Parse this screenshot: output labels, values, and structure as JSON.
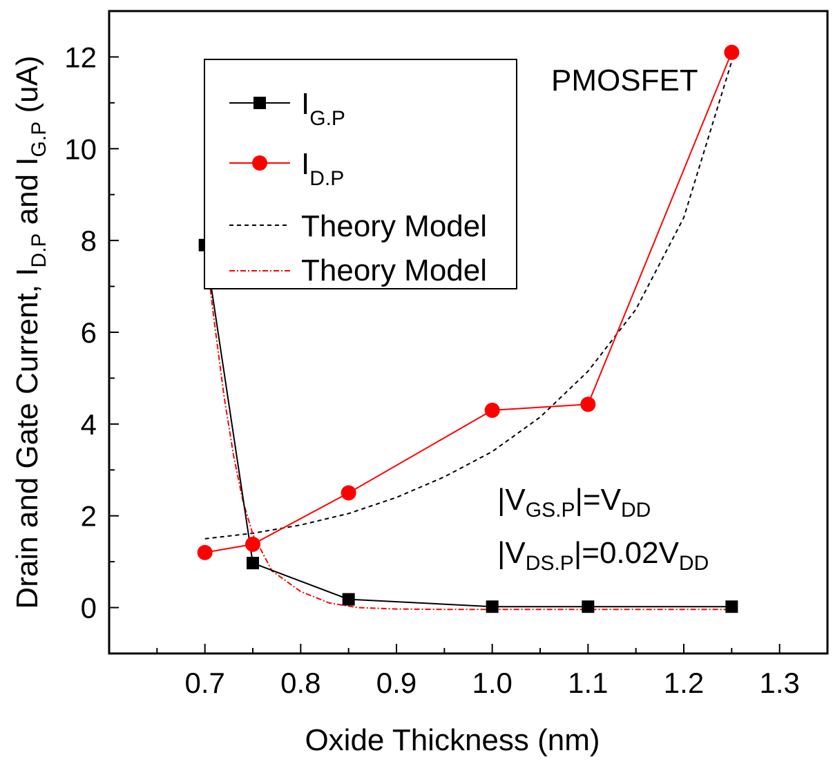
{
  "chart_data": {
    "type": "line",
    "title": "",
    "xlabel": "Oxide Thickness  (nm)",
    "ylabel": {
      "prefix": "Drain and Gate Current, I",
      "sub1": "D.P",
      "mid": " and I",
      "sub2": "G.P",
      "suffix": "  (uA)"
    },
    "xlim": [
      0.6,
      1.35
    ],
    "ylim": [
      -1,
      13
    ],
    "xticks": [
      "0.7",
      "0.8",
      "0.9",
      "1.0",
      "1.1",
      "1.2",
      "1.3"
    ],
    "xtick_values": [
      0.7,
      0.8,
      0.9,
      1.0,
      1.1,
      1.2,
      1.3
    ],
    "yticks": [
      "0",
      "2",
      "4",
      "6",
      "8",
      "10",
      "12"
    ],
    "ytick_values": [
      0,
      2,
      4,
      6,
      8,
      10,
      12
    ],
    "series": [
      {
        "name": "I",
        "sub": "G.P",
        "style": "solid-square",
        "color": "#000000",
        "x": [
          0.7,
          0.75,
          0.85,
          1.0,
          1.1,
          1.25
        ],
        "y": [
          7.9,
          0.97,
          0.18,
          0.02,
          0.02,
          0.02
        ]
      },
      {
        "name": "I",
        "sub": "D.P",
        "style": "solid-circle",
        "color": "#ff0000",
        "x": [
          0.7,
          0.75,
          0.85,
          1.0,
          1.1,
          1.25
        ],
        "y": [
          1.2,
          1.38,
          2.5,
          4.3,
          4.43,
          12.1
        ]
      },
      {
        "name": "Theory Model",
        "style": "dashed",
        "color": "#000000",
        "x": [
          0.7,
          0.75,
          0.8,
          0.85,
          0.9,
          0.95,
          1.0,
          1.05,
          1.1,
          1.15,
          1.2,
          1.25
        ],
        "y": [
          1.5,
          1.62,
          1.8,
          2.05,
          2.4,
          2.85,
          3.4,
          4.15,
          5.15,
          6.5,
          8.5,
          11.9
        ]
      },
      {
        "name": "Theory Model",
        "style": "dash-dot",
        "color": "#ff0000",
        "x": [
          0.7,
          0.71,
          0.72,
          0.73,
          0.74,
          0.75,
          0.77,
          0.8,
          0.83,
          0.86,
          0.9,
          0.95,
          1.0,
          1.1,
          1.25
        ],
        "y": [
          7.9,
          6.2,
          4.6,
          3.3,
          2.3,
          1.6,
          0.8,
          0.35,
          0.1,
          0.0,
          -0.03,
          -0.04,
          -0.04,
          -0.04,
          -0.04
        ]
      }
    ],
    "annotations": {
      "device": "PMOSFET",
      "cond1": {
        "a": "|V",
        "s1": "GS.P",
        "b": "|=V",
        "s2": "DD"
      },
      "cond2": {
        "a": "|V",
        "s1": "DS.P",
        "b": "|=0.02V",
        "s2": "DD"
      }
    }
  }
}
